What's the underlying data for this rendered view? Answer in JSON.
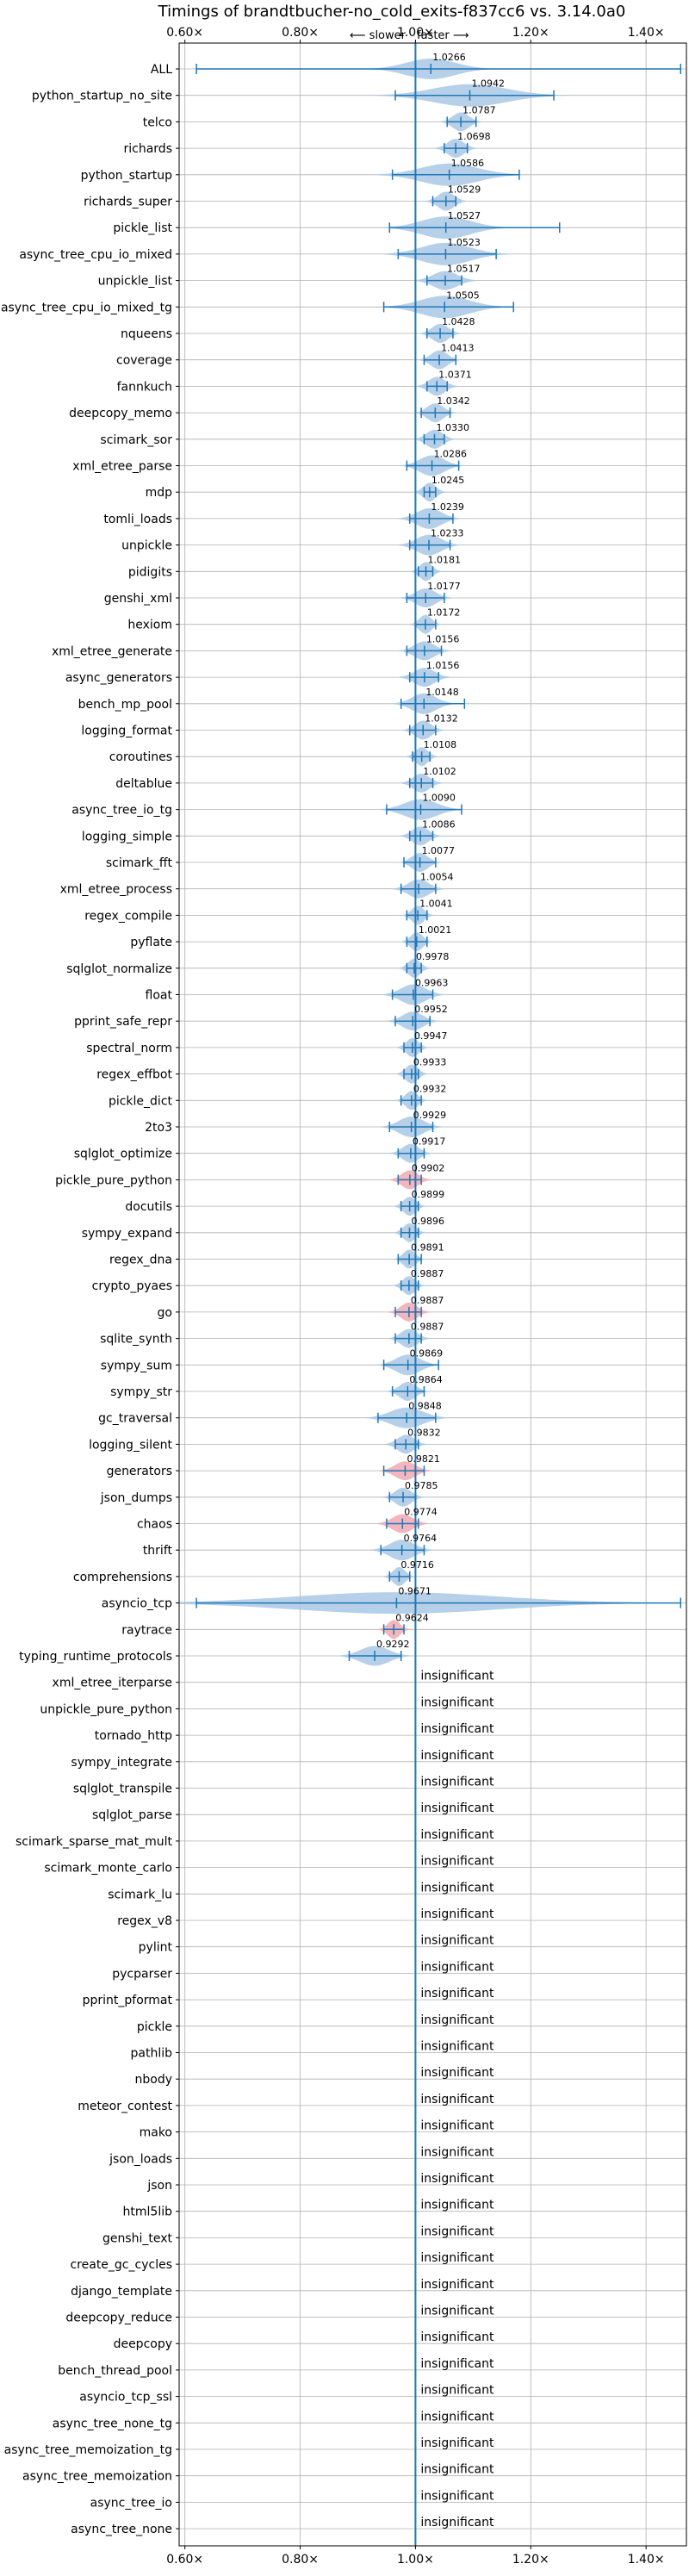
{
  "chart_data": {
    "type": "violin",
    "title": "Timings of brandtbucher-no_cold_exits-f837cc6 vs. 3.14.0a0",
    "direction_left": "⟵ slower",
    "direction_right": "faster ⟶",
    "xlim": [
      0.59,
      1.47
    ],
    "xticks": [
      "0.60×",
      "0.80×",
      "1.00×",
      "1.20×",
      "1.40×"
    ],
    "xtick_values": [
      0.6,
      0.8,
      1.0,
      1.2,
      1.4
    ],
    "grid": true,
    "reference_line": 1.0,
    "colors": {
      "faster": "#a9c8e6",
      "slower": "#f2a9b3",
      "line": "#1f77b4",
      "grid": "#b0b0b0"
    },
    "insignificant_label": "insignificant",
    "benchmarks": [
      {
        "name": "ALL",
        "value": 1.0266,
        "label": "1.0266",
        "low": 0.62,
        "high": 1.46,
        "width": 0.06,
        "spread": 0.04,
        "slower": false
      },
      {
        "name": "python_startup_no_site",
        "value": 1.0942,
        "label": "1.0942",
        "low": 0.965,
        "high": 1.24,
        "width": 0.09,
        "spread": 0.07,
        "slower": false
      },
      {
        "name": "telco",
        "value": 1.0787,
        "label": "1.0787",
        "low": 1.055,
        "high": 1.105,
        "width": 0.02,
        "spread": 0.03,
        "slower": false
      },
      {
        "name": "richards",
        "value": 1.0698,
        "label": "1.0698",
        "low": 1.05,
        "high": 1.09,
        "width": 0.02,
        "spread": 0.03,
        "slower": false
      },
      {
        "name": "python_startup",
        "value": 1.0586,
        "label": "1.0586",
        "low": 0.96,
        "high": 1.18,
        "width": 0.07,
        "spread": 0.06,
        "slower": false
      },
      {
        "name": "richards_super",
        "value": 1.0529,
        "label": "1.0529",
        "low": 1.03,
        "high": 1.07,
        "width": 0.02,
        "spread": 0.03,
        "slower": false
      },
      {
        "name": "pickle_list",
        "value": 1.0527,
        "label": "1.0527",
        "low": 0.955,
        "high": 1.25,
        "width": 0.06,
        "spread": 0.06,
        "slower": false
      },
      {
        "name": "async_tree_cpu_io_mixed",
        "value": 1.0523,
        "label": "1.0523",
        "low": 0.97,
        "high": 1.14,
        "width": 0.06,
        "spread": 0.06,
        "slower": false
      },
      {
        "name": "unpickle_list",
        "value": 1.0517,
        "label": "1.0517",
        "low": 1.02,
        "high": 1.08,
        "width": 0.03,
        "spread": 0.03,
        "slower": false
      },
      {
        "name": "async_tree_cpu_io_mixed_tg",
        "value": 1.0505,
        "label": "1.0505",
        "low": 0.945,
        "high": 1.17,
        "width": 0.06,
        "spread": 0.06,
        "slower": false
      },
      {
        "name": "nqueens",
        "value": 1.0428,
        "label": "1.0428",
        "low": 1.02,
        "high": 1.065,
        "width": 0.02,
        "spread": 0.03,
        "slower": false
      },
      {
        "name": "coverage",
        "value": 1.0413,
        "label": "1.0413",
        "low": 1.015,
        "high": 1.07,
        "width": 0.02,
        "spread": 0.03,
        "slower": false
      },
      {
        "name": "fannkuch",
        "value": 1.0371,
        "label": "1.0371",
        "low": 1.02,
        "high": 1.055,
        "width": 0.02,
        "spread": 0.03,
        "slower": false
      },
      {
        "name": "deepcopy_memo",
        "value": 1.0342,
        "label": "1.0342",
        "low": 1.01,
        "high": 1.06,
        "width": 0.02,
        "spread": 0.03,
        "slower": false
      },
      {
        "name": "scimark_sor",
        "value": 1.033,
        "label": "1.0330",
        "low": 1.015,
        "high": 1.05,
        "width": 0.02,
        "spread": 0.03,
        "slower": false
      },
      {
        "name": "xml_etree_parse",
        "value": 1.0286,
        "label": "1.0286",
        "low": 0.985,
        "high": 1.075,
        "width": 0.03,
        "spread": 0.04,
        "slower": false
      },
      {
        "name": "mdp",
        "value": 1.0245,
        "label": "1.0245",
        "low": 1.015,
        "high": 1.035,
        "width": 0.015,
        "spread": 0.03,
        "slower": false
      },
      {
        "name": "tomli_loads",
        "value": 1.0239,
        "label": "1.0239",
        "low": 0.99,
        "high": 1.065,
        "width": 0.03,
        "spread": 0.04,
        "slower": false
      },
      {
        "name": "unpickle",
        "value": 1.0233,
        "label": "1.0233",
        "low": 0.99,
        "high": 1.06,
        "width": 0.03,
        "spread": 0.04,
        "slower": false
      },
      {
        "name": "pidigits",
        "value": 1.0181,
        "label": "1.0181",
        "low": 1.005,
        "high": 1.03,
        "width": 0.015,
        "spread": 0.03,
        "slower": false
      },
      {
        "name": "genshi_xml",
        "value": 1.0177,
        "label": "1.0177",
        "low": 0.985,
        "high": 1.05,
        "width": 0.025,
        "spread": 0.03,
        "slower": false
      },
      {
        "name": "hexiom",
        "value": 1.0172,
        "label": "1.0172",
        "low": 1.0,
        "high": 1.035,
        "width": 0.015,
        "spread": 0.03,
        "slower": false
      },
      {
        "name": "xml_etree_generate",
        "value": 1.0156,
        "label": "1.0156",
        "low": 0.985,
        "high": 1.045,
        "width": 0.025,
        "spread": 0.03,
        "slower": false
      },
      {
        "name": "async_generators",
        "value": 1.0156,
        "label": "1.0156",
        "low": 0.99,
        "high": 1.04,
        "width": 0.025,
        "spread": 0.03,
        "slower": false
      },
      {
        "name": "bench_mp_pool",
        "value": 1.0148,
        "label": "1.0148",
        "low": 0.975,
        "high": 1.085,
        "width": 0.03,
        "spread": 0.04,
        "slower": false
      },
      {
        "name": "logging_format",
        "value": 1.0132,
        "label": "1.0132",
        "low": 0.99,
        "high": 1.035,
        "width": 0.02,
        "spread": 0.03,
        "slower": false
      },
      {
        "name": "coroutines",
        "value": 1.0108,
        "label": "1.0108",
        "low": 0.995,
        "high": 1.025,
        "width": 0.015,
        "spread": 0.03,
        "slower": false
      },
      {
        "name": "deltablue",
        "value": 1.0102,
        "label": "1.0102",
        "low": 0.99,
        "high": 1.03,
        "width": 0.02,
        "spread": 0.03,
        "slower": false
      },
      {
        "name": "async_tree_io_tg",
        "value": 1.009,
        "label": "1.0090",
        "low": 0.95,
        "high": 1.08,
        "width": 0.04,
        "spread": 0.04,
        "slower": false
      },
      {
        "name": "logging_simple",
        "value": 1.0086,
        "label": "1.0086",
        "low": 0.99,
        "high": 1.03,
        "width": 0.02,
        "spread": 0.03,
        "slower": false
      },
      {
        "name": "scimark_fft",
        "value": 1.0077,
        "label": "1.0077",
        "low": 0.98,
        "high": 1.035,
        "width": 0.02,
        "spread": 0.03,
        "slower": false
      },
      {
        "name": "xml_etree_process",
        "value": 1.0054,
        "label": "1.0054",
        "low": 0.975,
        "high": 1.035,
        "width": 0.025,
        "spread": 0.03,
        "slower": false
      },
      {
        "name": "regex_compile",
        "value": 1.0041,
        "label": "1.0041",
        "low": 0.985,
        "high": 1.02,
        "width": 0.015,
        "spread": 0.03,
        "slower": false
      },
      {
        "name": "pyflate",
        "value": 1.0021,
        "label": "1.0021",
        "low": 0.985,
        "high": 1.02,
        "width": 0.015,
        "spread": 0.03,
        "slower": false
      },
      {
        "name": "sqlglot_normalize",
        "value": 0.9978,
        "label": "0.9978",
        "low": 0.985,
        "high": 1.01,
        "width": 0.015,
        "spread": 0.03,
        "slower": false
      },
      {
        "name": "float",
        "value": 0.9963,
        "label": "0.9963",
        "low": 0.96,
        "high": 1.03,
        "width": 0.03,
        "spread": 0.04,
        "slower": false
      },
      {
        "name": "pprint_safe_repr",
        "value": 0.9952,
        "label": "0.9952",
        "low": 0.965,
        "high": 1.025,
        "width": 0.025,
        "spread": 0.03,
        "slower": false
      },
      {
        "name": "spectral_norm",
        "value": 0.9947,
        "label": "0.9947",
        "low": 0.98,
        "high": 1.01,
        "width": 0.015,
        "spread": 0.03,
        "slower": false
      },
      {
        "name": "regex_effbot",
        "value": 0.9933,
        "label": "0.9933",
        "low": 0.98,
        "high": 1.005,
        "width": 0.015,
        "spread": 0.03,
        "slower": false
      },
      {
        "name": "pickle_dict",
        "value": 0.9932,
        "label": "0.9932",
        "low": 0.975,
        "high": 1.01,
        "width": 0.015,
        "spread": 0.03,
        "slower": false
      },
      {
        "name": "2to3",
        "value": 0.9929,
        "label": "0.9929",
        "low": 0.955,
        "high": 1.03,
        "width": 0.03,
        "spread": 0.04,
        "slower": false
      },
      {
        "name": "sqlglot_optimize",
        "value": 0.9917,
        "label": "0.9917",
        "low": 0.97,
        "high": 1.015,
        "width": 0.02,
        "spread": 0.03,
        "slower": false
      },
      {
        "name": "pickle_pure_python",
        "value": 0.9902,
        "label": "0.9902",
        "low": 0.97,
        "high": 1.01,
        "width": 0.02,
        "spread": 0.03,
        "slower": true
      },
      {
        "name": "docutils",
        "value": 0.9899,
        "label": "0.9899",
        "low": 0.975,
        "high": 1.005,
        "width": 0.015,
        "spread": 0.03,
        "slower": false
      },
      {
        "name": "sympy_expand",
        "value": 0.9896,
        "label": "0.9896",
        "low": 0.975,
        "high": 1.005,
        "width": 0.015,
        "spread": 0.03,
        "slower": false
      },
      {
        "name": "regex_dna",
        "value": 0.9891,
        "label": "0.9891",
        "low": 0.97,
        "high": 1.01,
        "width": 0.015,
        "spread": 0.03,
        "slower": false
      },
      {
        "name": "crypto_pyaes",
        "value": 0.9887,
        "label": "0.9887",
        "low": 0.975,
        "high": 1.005,
        "width": 0.015,
        "spread": 0.03,
        "slower": false
      },
      {
        "name": "go",
        "value": 0.9887,
        "label": "0.9887",
        "low": 0.965,
        "high": 1.01,
        "width": 0.02,
        "spread": 0.03,
        "slower": true
      },
      {
        "name": "sqlite_synth",
        "value": 0.9887,
        "label": "0.9887",
        "low": 0.965,
        "high": 1.01,
        "width": 0.02,
        "spread": 0.03,
        "slower": false
      },
      {
        "name": "sympy_sum",
        "value": 0.9869,
        "label": "0.9869",
        "low": 0.945,
        "high": 1.04,
        "width": 0.03,
        "spread": 0.04,
        "slower": false
      },
      {
        "name": "sympy_str",
        "value": 0.9864,
        "label": "0.9864",
        "low": 0.96,
        "high": 1.015,
        "width": 0.02,
        "spread": 0.03,
        "slower": false
      },
      {
        "name": "gc_traversal",
        "value": 0.9848,
        "label": "0.9848",
        "low": 0.935,
        "high": 1.035,
        "width": 0.04,
        "spread": 0.04,
        "slower": false
      },
      {
        "name": "logging_silent",
        "value": 0.9832,
        "label": "0.9832",
        "low": 0.965,
        "high": 1.005,
        "width": 0.02,
        "spread": 0.03,
        "slower": false
      },
      {
        "name": "generators",
        "value": 0.9821,
        "label": "0.9821",
        "low": 0.945,
        "high": 1.015,
        "width": 0.025,
        "spread": 0.03,
        "slower": true
      },
      {
        "name": "json_dumps",
        "value": 0.9785,
        "label": "0.9785",
        "low": 0.955,
        "high": 1.0,
        "width": 0.02,
        "spread": 0.03,
        "slower": false
      },
      {
        "name": "chaos",
        "value": 0.9774,
        "label": "0.9774",
        "low": 0.95,
        "high": 1.005,
        "width": 0.025,
        "spread": 0.03,
        "slower": true
      },
      {
        "name": "thrift",
        "value": 0.9764,
        "label": "0.9764",
        "low": 0.94,
        "high": 1.015,
        "width": 0.03,
        "spread": 0.04,
        "slower": false
      },
      {
        "name": "comprehensions",
        "value": 0.9716,
        "label": "0.9716",
        "low": 0.955,
        "high": 0.99,
        "width": 0.015,
        "spread": 0.03,
        "slower": false
      },
      {
        "name": "asyncio_tcp",
        "value": 0.9671,
        "label": "0.9671",
        "low": 0.62,
        "high": 1.46,
        "width": 0.25,
        "spread": 0.045,
        "slower": false
      },
      {
        "name": "raytrace",
        "value": 0.9624,
        "label": "0.9624",
        "low": 0.945,
        "high": 0.98,
        "width": 0.015,
        "spread": 0.03,
        "slower": true
      },
      {
        "name": "typing_runtime_protocols",
        "value": 0.9292,
        "label": "0.9292",
        "low": 0.885,
        "high": 0.975,
        "width": 0.035,
        "spread": 0.035,
        "slower": false
      },
      {
        "name": "xml_etree_iterparse",
        "insignificant": true
      },
      {
        "name": "unpickle_pure_python",
        "insignificant": true
      },
      {
        "name": "tornado_http",
        "insignificant": true
      },
      {
        "name": "sympy_integrate",
        "insignificant": true
      },
      {
        "name": "sqlglot_transpile",
        "insignificant": true
      },
      {
        "name": "sqlglot_parse",
        "insignificant": true
      },
      {
        "name": "scimark_sparse_mat_mult",
        "insignificant": true
      },
      {
        "name": "scimark_monte_carlo",
        "insignificant": true
      },
      {
        "name": "scimark_lu",
        "insignificant": true
      },
      {
        "name": "regex_v8",
        "insignificant": true
      },
      {
        "name": "pylint",
        "insignificant": true
      },
      {
        "name": "pycparser",
        "insignificant": true
      },
      {
        "name": "pprint_pformat",
        "insignificant": true
      },
      {
        "name": "pickle",
        "insignificant": true
      },
      {
        "name": "pathlib",
        "insignificant": true
      },
      {
        "name": "nbody",
        "insignificant": true
      },
      {
        "name": "meteor_contest",
        "insignificant": true
      },
      {
        "name": "mako",
        "insignificant": true
      },
      {
        "name": "json_loads",
        "insignificant": true
      },
      {
        "name": "json",
        "insignificant": true
      },
      {
        "name": "html5lib",
        "insignificant": true
      },
      {
        "name": "genshi_text",
        "insignificant": true
      },
      {
        "name": "create_gc_cycles",
        "insignificant": true
      },
      {
        "name": "django_template",
        "insignificant": true
      },
      {
        "name": "deepcopy_reduce",
        "insignificant": true
      },
      {
        "name": "deepcopy",
        "insignificant": true
      },
      {
        "name": "bench_thread_pool",
        "insignificant": true
      },
      {
        "name": "asyncio_tcp_ssl",
        "insignificant": true
      },
      {
        "name": "async_tree_none_tg",
        "insignificant": true
      },
      {
        "name": "async_tree_memoization_tg",
        "insignificant": true
      },
      {
        "name": "async_tree_memoization",
        "insignificant": true
      },
      {
        "name": "async_tree_io",
        "insignificant": true
      },
      {
        "name": "async_tree_none",
        "insignificant": true
      }
    ]
  }
}
